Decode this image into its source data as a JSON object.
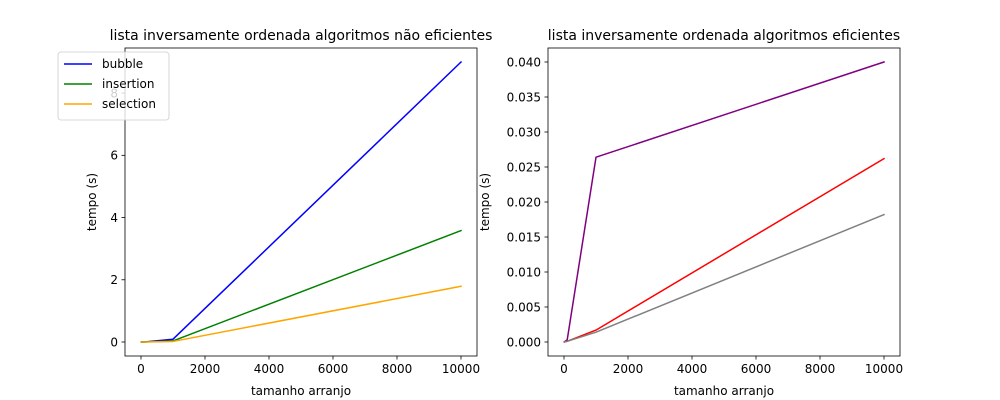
{
  "chart_data": [
    {
      "type": "line",
      "title": "lista inversamente ordenada algoritmos não eficientes",
      "xlabel": "tamanho arranjo",
      "ylabel": "tempo (s)",
      "x": [
        10,
        100,
        1000,
        10000
      ],
      "xlim": [
        -500,
        10500
      ],
      "ylim": [
        -0.45,
        9.45
      ],
      "xticks": [
        0,
        2000,
        4000,
        6000,
        8000,
        10000
      ],
      "xtick_labels": [
        "0",
        "2000",
        "4000",
        "6000",
        "8000",
        "10000"
      ],
      "yticks": [
        0,
        2,
        4,
        6,
        8
      ],
      "ytick_labels": [
        "0",
        "2",
        "4",
        "6",
        "8"
      ],
      "grid": false,
      "legend": "upper left",
      "series": [
        {
          "name": "bubble",
          "color": "#0000ff",
          "values": [
            0.0,
            0.0009,
            0.09,
            9.0
          ]
        },
        {
          "name": "insertion",
          "color": "#008000",
          "values": [
            0.0,
            0.0004,
            0.035,
            3.58
          ]
        },
        {
          "name": "selection",
          "color": "#ffa500",
          "values": [
            0.0,
            0.0002,
            0.018,
            1.79
          ]
        }
      ]
    },
    {
      "type": "line",
      "title": "lista inversamente ordenada algoritmos eficientes",
      "xlabel": "tamanho arranjo",
      "ylabel": "tempo (s)",
      "x": [
        10,
        100,
        1000,
        10000
      ],
      "xlim": [
        -500,
        10500
      ],
      "ylim": [
        -0.002,
        0.042
      ],
      "xticks": [
        0,
        2000,
        4000,
        6000,
        8000,
        10000
      ],
      "xtick_labels": [
        "0",
        "2000",
        "4000",
        "6000",
        "8000",
        "10000"
      ],
      "yticks": [
        0,
        0.005,
        0.01,
        0.015,
        0.02,
        0.025,
        0.03,
        0.035,
        0.04
      ],
      "ytick_labels": [
        "0.000",
        "0.005",
        "0.010",
        "0.015",
        "0.020",
        "0.025",
        "0.030",
        "0.035",
        "0.040"
      ],
      "grid": false,
      "series": [
        {
          "color": "#800080",
          "values": [
            2e-05,
            0.0003,
            0.0264,
            0.04
          ]
        },
        {
          "color": "#ff0000",
          "values": [
            1e-05,
            0.0001,
            0.0017,
            0.0262
          ]
        },
        {
          "color": "#808080",
          "values": [
            1e-05,
            0.0001,
            0.0014,
            0.0182
          ]
        }
      ]
    }
  ]
}
